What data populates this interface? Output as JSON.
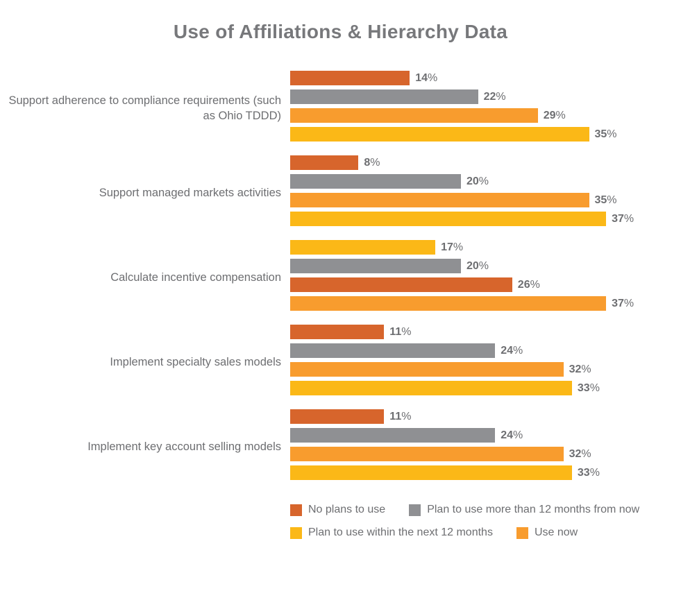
{
  "chart_data": {
    "type": "bar",
    "orientation": "horizontal",
    "title": "Use of Affiliations & Hierarchy Data",
    "value_unit": "%",
    "xlim": [
      0,
      40
    ],
    "grid": false,
    "legend_position": "bottom",
    "series": {
      "no_plans": {
        "label": "No plans to use",
        "color": "#d7652c"
      },
      "more_than_12": {
        "label": "Plan to use more than 12 months from now",
        "color": "#8f9093"
      },
      "within_12": {
        "label": "Plan to use within the next 12 months",
        "color": "#fbb817"
      },
      "use_now": {
        "label": "Use now",
        "color": "#f89c2e"
      }
    },
    "legend_rows": [
      [
        "no_plans",
        "more_than_12"
      ],
      [
        "within_12",
        "use_now"
      ]
    ],
    "groups": [
      {
        "category": "Support adherence to compliance requirements (such as Ohio TDDD)",
        "bars": [
          {
            "series": "no_plans",
            "value": 14
          },
          {
            "series": "more_than_12",
            "value": 22
          },
          {
            "series": "use_now",
            "value": 29
          },
          {
            "series": "within_12",
            "value": 35
          }
        ]
      },
      {
        "category": "Support managed markets activities",
        "bars": [
          {
            "series": "no_plans",
            "value": 8
          },
          {
            "series": "more_than_12",
            "value": 20
          },
          {
            "series": "use_now",
            "value": 35
          },
          {
            "series": "within_12",
            "value": 37
          }
        ]
      },
      {
        "category": "Calculate incentive compensation",
        "bars": [
          {
            "series": "within_12",
            "value": 17
          },
          {
            "series": "more_than_12",
            "value": 20
          },
          {
            "series": "no_plans",
            "value": 26
          },
          {
            "series": "use_now",
            "value": 37
          }
        ]
      },
      {
        "category": "Implement specialty sales models",
        "bars": [
          {
            "series": "no_plans",
            "value": 11
          },
          {
            "series": "more_than_12",
            "value": 24
          },
          {
            "series": "use_now",
            "value": 32
          },
          {
            "series": "within_12",
            "value": 33
          }
        ]
      },
      {
        "category": "Implement key account selling models",
        "bars": [
          {
            "series": "no_plans",
            "value": 11
          },
          {
            "series": "more_than_12",
            "value": 24
          },
          {
            "series": "use_now",
            "value": 32
          },
          {
            "series": "within_12",
            "value": 33
          }
        ]
      }
    ]
  }
}
